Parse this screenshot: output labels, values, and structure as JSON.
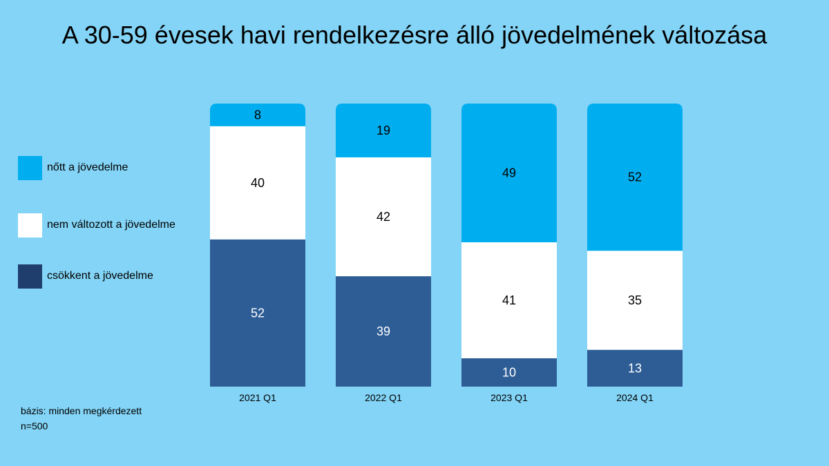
{
  "title": "A 30-59 évesek havi rendelkezésre álló jövedelmének változása",
  "legend": [
    {
      "label": "nőtt a jövedelme",
      "color": "#00aeef"
    },
    {
      "label": "nem változott a jövedelme",
      "color": "#ffffff"
    },
    {
      "label": "csökkent a jövedelme",
      "color": "#1f3e6e"
    }
  ],
  "footnote": {
    "line1": "bázis: minden megkérdezett",
    "line2": "n=500"
  },
  "chart_data": {
    "type": "bar",
    "stacked": true,
    "categories": [
      "2021 Q1",
      "2022 Q1",
      "2023 Q1",
      "2024 Q1"
    ],
    "series": [
      {
        "name": "csökkent a jövedelme",
        "values": [
          52,
          39,
          10,
          13
        ],
        "color": "#2e5d96",
        "label_color": "#ffffff"
      },
      {
        "name": "nem változott a jövedelme",
        "values": [
          40,
          42,
          41,
          35
        ],
        "color": "#ffffff",
        "label_color": "#000000"
      },
      {
        "name": "nőtt a jövedelme",
        "values": [
          8,
          19,
          49,
          52
        ],
        "color": "#00aeef",
        "label_color": "#000000"
      }
    ],
    "ylim": [
      0,
      100
    ],
    "grid": false,
    "legend_position": "left"
  }
}
